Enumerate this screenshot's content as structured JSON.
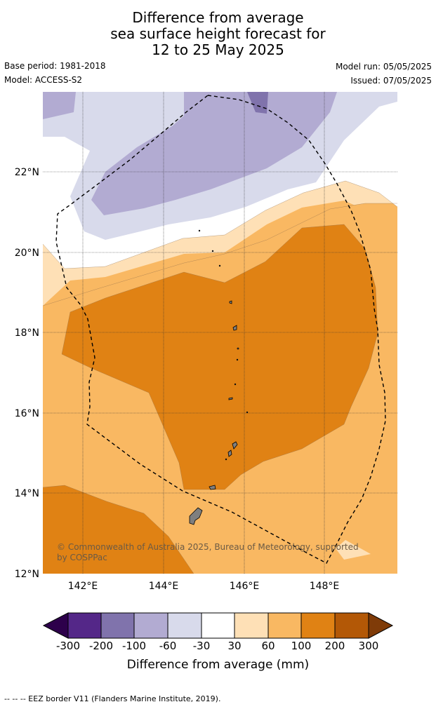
{
  "title": {
    "line1": "Difference from average",
    "line2": "sea surface height forecast for",
    "line3": "12 to 25 May 2025"
  },
  "meta": {
    "base_period": "Base period: 1981-2018",
    "model": "Model: ACCESS-S2",
    "model_run": "Model run: 05/05/2025",
    "issued": "Issued: 07/05/2025"
  },
  "map": {
    "lat_labels": [
      "22°N",
      "20°N",
      "18°N",
      "16°N",
      "14°N",
      "12°N"
    ],
    "lon_labels": [
      "142°E",
      "144°E",
      "146°E",
      "148°E"
    ],
    "copyright_line1": "© Commonwealth of Australia 2025, Bureau of Meteorology, supported",
    "copyright_line2": "by COSPPac",
    "colors": {
      "neg_300": "#2d004b",
      "neg_200": "#542788",
      "neg_100": "#8073ac",
      "neg_60": "#b2abd2",
      "neg_30": "#d8daeb",
      "neutral": "#ffffff",
      "pos_30": "#fee0b6",
      "pos_60": "#f9b862",
      "pos_100": "#e08214",
      "pos_200": "#b35806",
      "pos_300": "#7f3b08"
    }
  },
  "colorbar": {
    "ticks": [
      "-300",
      "-200",
      "-100",
      "-60",
      "-30",
      "30",
      "60",
      "100",
      "200",
      "300"
    ],
    "label": "Difference from average (mm)"
  },
  "footer": {
    "legend": "-- -- -- EEZ border V11 (Flanders Marine Institute, 2019)."
  }
}
